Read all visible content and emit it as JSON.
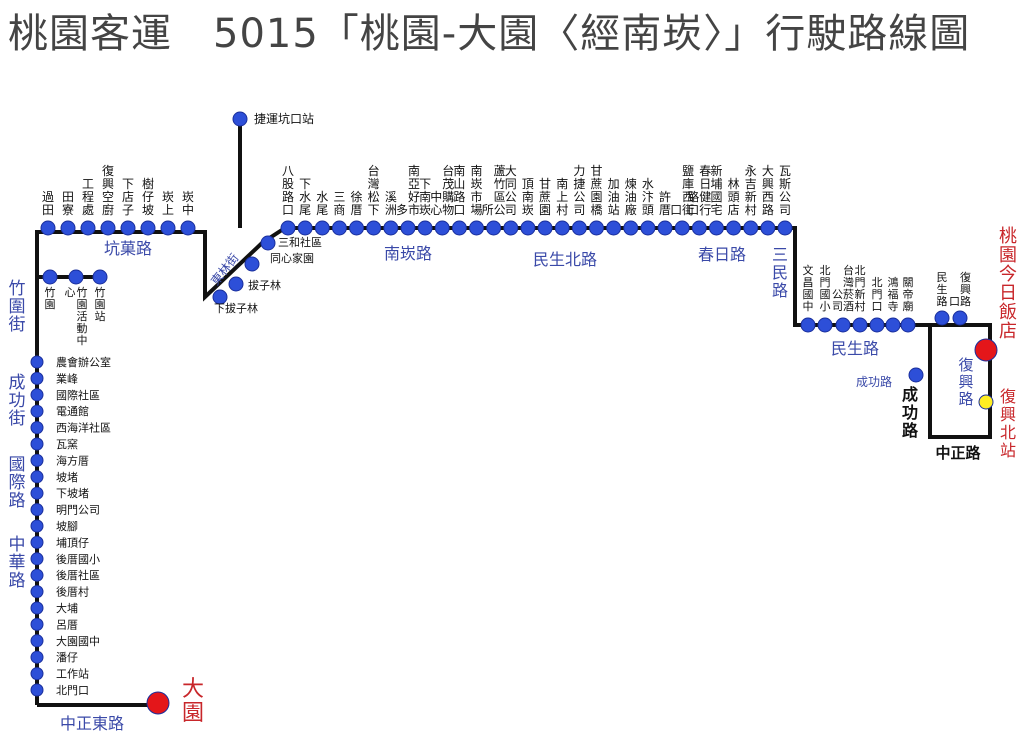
{
  "title": "桃園客運　5015「桃園-大園〈經南崁〉」行駛路線圖",
  "colors": {
    "line": "#111111",
    "stop": "#2d4fd8",
    "terminal": "#e4161a",
    "road": "#3a49a8",
    "terminal_text": "#c8262a",
    "optional": "#ffee22"
  },
  "stops": {
    "branch_top": "捷運坑口站",
    "row_top": [
      "過田",
      "田寮",
      "工程處",
      "復興空廚",
      "下店子",
      "樹仔坡",
      "崁上",
      "崁中",
      "八股路口",
      "下水尾",
      "水尾",
      "三商",
      "徐厝",
      "台灣松下",
      "溪洲",
      "南亞好市多",
      "下南崁",
      "台茂購物中心",
      "南山路口",
      "南崁市場",
      "蘆竹區公所",
      "大同公司",
      "頂南崁",
      "甘蔗園",
      "南上村",
      "力捷公司",
      "甘蔗園橋",
      "加油站",
      "煉油廠",
      "水汴頭",
      "許厝",
      "鹽庫西街口",
      "春日健行路口",
      "新埔國宅",
      "林頭店",
      "永吉新村",
      "大興西路",
      "瓦斯公司"
    ],
    "vert_mid": [
      "三和社區",
      "同心家園",
      "拔子林",
      "下拔子林"
    ],
    "row_zhuwei": [
      "竹園",
      "竹園活動中心",
      "竹園站"
    ],
    "vertical_left": [
      "農會辦公室",
      "業峰",
      "國際社區",
      "電通館",
      "西海洋社區",
      "瓦窯",
      "海方厝",
      "坡堵",
      "下坡堵",
      "明門公司",
      "坡腳",
      "埔頂仔",
      "後厝國小",
      "後厝社區",
      "後厝村",
      "大埔",
      "呂厝",
      "大園國中",
      "潘仔",
      "工作站",
      "北門口"
    ],
    "row_right": [
      "文昌國中",
      "北門國小",
      "台灣菸酒公司",
      "北門新村",
      "北門口",
      "鴻福寺",
      "關帝廟",
      "民生路",
      "復興路口"
    ],
    "chenggong": "成功路"
  },
  "roads": {
    "kengye": "坑菓路",
    "dongsheng": "東林街",
    "nankan": "南崁路",
    "minsheng_n": "民生北路",
    "chunri": "春日路",
    "sanmin": "三民路",
    "minsheng": "民生路",
    "zhuwei": "竹圍街",
    "chenggong_st": "成功街",
    "guoji": "國際路",
    "zhonghua": "中華路",
    "zhongzheng_e": "中正東路",
    "chenggong_rd": "成功路",
    "fuxing": "復興路",
    "zhongzheng": "中正路"
  },
  "terminals": {
    "taoyuan": "桃園今日飯店",
    "dayuan": "大園",
    "fuxing_north": "復興北站"
  }
}
